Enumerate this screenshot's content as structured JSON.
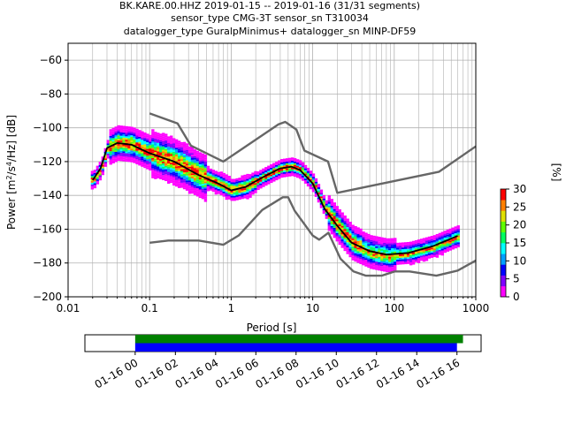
{
  "chart_data": [
    {
      "type": "heatmap",
      "title_lines": [
        "BK.KARE.00.HHZ   2019-01-15 -- 2019-01-16  (31/31 segments)",
        "sensor_type CMG-3T sensor_sn T310034",
        "datalogger_type GuralpMinimus+ datalogger_sn MINP-DF59"
      ],
      "xlabel": "Period [s]",
      "ylabel": "Power [m^2/s^4/Hz] [dB]",
      "xscale": "log",
      "xlim": [
        0.01,
        1000
      ],
      "ylim": [
        -200,
        -50
      ],
      "x_ticks": [
        0.01,
        0.1,
        1,
        10,
        100,
        1000
      ],
      "x_tick_labels": [
        "0.01",
        "0.1",
        "1",
        "10",
        "100",
        "1000"
      ],
      "y_ticks": [
        -200,
        -180,
        -160,
        -140,
        -120,
        -100,
        -80,
        -60
      ],
      "y_tick_labels": [
        "−200",
        "−180",
        "−160",
        "−140",
        "−120",
        "−100",
        "−80",
        "−60"
      ],
      "grid": true,
      "colorbar": {
        "label": "[%]",
        "min": 0,
        "max": 30,
        "ticks": [
          0,
          5,
          10,
          15,
          20,
          25,
          30
        ],
        "tick_labels": [
          "0",
          "5",
          "10",
          "15",
          "20",
          "25",
          "30"
        ],
        "colormap": [
          "#ffffff",
          "#ff00ff",
          "#8000ff",
          "#0000ff",
          "#00a0ff",
          "#00ffff",
          "#00ff60",
          "#60ff00",
          "#e0e000",
          "#ff8000",
          "#ff0000"
        ]
      },
      "series": [
        {
          "role": "high-noise-model",
          "color": "#666666",
          "x": [
            0.1,
            0.22,
            0.32,
            0.8,
            3.8,
            4.6,
            6.3,
            7.9,
            15.4,
            20,
            354.8,
            1000
          ],
          "y": [
            -91.5,
            -97.4,
            -110.5,
            -120,
            -98,
            -96.5,
            -101,
            -113.5,
            -120,
            -138.5,
            -126,
            -111
          ]
        },
        {
          "role": "low-noise-model",
          "color": "#666666",
          "x": [
            0.1,
            0.17,
            0.4,
            0.8,
            1.24,
            2.4,
            4.3,
            5,
            6,
            10,
            12,
            15.6,
            21.9,
            31.6,
            45,
            70,
            101,
            154,
            328,
            600,
            1000
          ],
          "y": [
            -168,
            -166.7,
            -166.7,
            -169.2,
            -163.7,
            -148.6,
            -141.1,
            -141.1,
            -149,
            -163.8,
            -166.2,
            -162.1,
            -177.5,
            -185,
            -187.5,
            -187.5,
            -185,
            -185,
            -187.5,
            -184.5,
            -178.5
          ]
        },
        {
          "role": "mode",
          "color": "#000000",
          "x": [
            0.02,
            0.025,
            0.03,
            0.04,
            0.06,
            0.1,
            0.2,
            0.4,
            0.7,
            1.0,
            1.5,
            2.5,
            4,
            5.5,
            7,
            10,
            14,
            20,
            30,
            50,
            80,
            150,
            300,
            600
          ],
          "y": [
            -131,
            -124,
            -112,
            -109,
            -110,
            -115,
            -120,
            -128,
            -133,
            -137,
            -135,
            -129,
            -124,
            -123,
            -125,
            -133,
            -148,
            -158,
            -168,
            -173,
            -175,
            -174,
            -170,
            -164
          ]
        }
      ],
      "data_coverage": {
        "x_tick_labels": [
          "01-16 00",
          "01-16 02",
          "01-16 04",
          "01-16 06",
          "01-16 08",
          "01-16 10",
          "01-16 12",
          "01-16 14",
          "01-16 16"
        ],
        "bars": [
          {
            "name": "data",
            "color": "#008000",
            "start_hour": 0,
            "end_hour": 16.3
          },
          {
            "name": "psd",
            "color": "#0000ff",
            "start_hour": 0,
            "end_hour": 16
          }
        ],
        "xlim_hours": [
          -2.5,
          17.2
        ]
      }
    }
  ]
}
